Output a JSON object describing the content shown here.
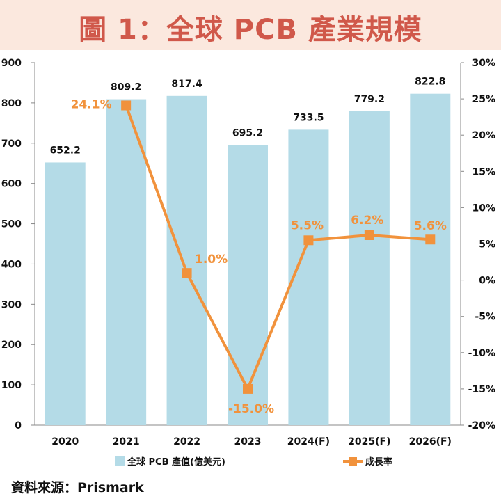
{
  "title": "圖 1：全球 PCB 產業規模",
  "source": "資料來源：Prismark",
  "colors": {
    "bar": "#b4dbe7",
    "line": "#f1923c",
    "title_bg": "#fbe8de",
    "title_text": "#d0584a"
  },
  "chart_data": {
    "type": "bar",
    "categories": [
      "2020",
      "2021",
      "2022",
      "2023",
      "2024(F)",
      "2025(F)",
      "2026(F)"
    ],
    "series": [
      {
        "name": "全球 PCB 產值(億美元)",
        "type": "bar",
        "axis": "left",
        "values": [
          652.2,
          809.2,
          817.4,
          695.2,
          733.5,
          779.2,
          822.8
        ],
        "labels": [
          "652.2",
          "809.2",
          "817.4",
          "695.2",
          "733.5",
          "779.2",
          "822.8"
        ]
      },
      {
        "name": "成長率",
        "type": "line",
        "axis": "right",
        "values": [
          null,
          24.1,
          1.0,
          -15.0,
          5.5,
          6.2,
          5.6
        ],
        "labels": [
          "",
          "24.1%",
          "1.0%",
          "-15.0%",
          "5.5%",
          "6.2%",
          "5.6%"
        ]
      }
    ],
    "y_left": {
      "min": 0,
      "max": 900,
      "ticks": [
        "0",
        "100",
        "200",
        "300",
        "400",
        "500",
        "600",
        "700",
        "800",
        "900"
      ]
    },
    "y_right": {
      "min": -20,
      "max": 30,
      "ticks": [
        "-20%",
        "-15%",
        "-10%",
        "-5%",
        "0%",
        "5%",
        "10%",
        "15%",
        "20%",
        "25%",
        "30%"
      ]
    },
    "grid": false,
    "legend_position": "bottom"
  }
}
